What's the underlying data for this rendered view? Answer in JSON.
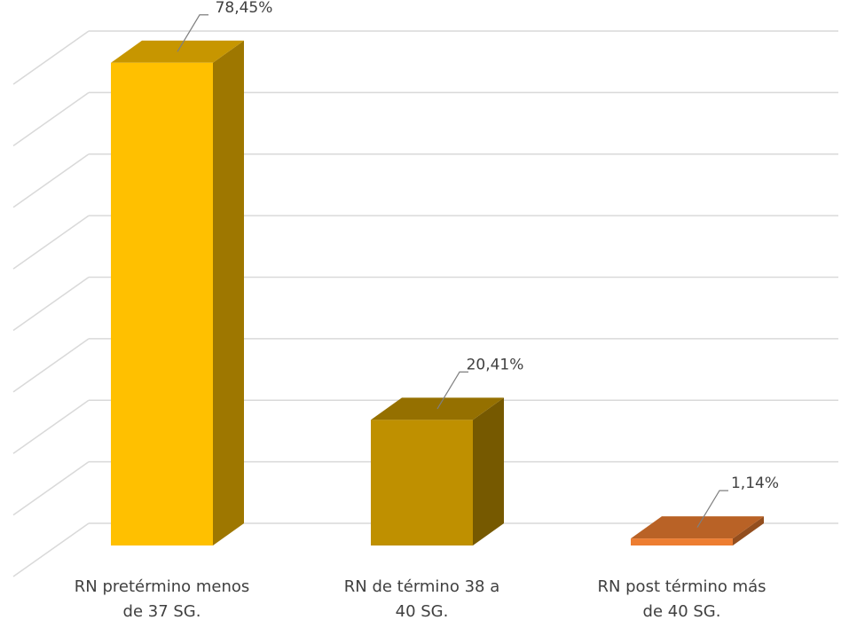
{
  "chart_data": {
    "type": "bar3d",
    "categories": [
      [
        "RN pretérmino menos",
        "de 37 SG."
      ],
      [
        "RN de término 38 a",
        "40 SG."
      ],
      [
        "RN post término más",
        "de 40 SG."
      ]
    ],
    "values": [
      78.45,
      20.41,
      1.14
    ],
    "value_labels": [
      "78,45%",
      "20,41%",
      "1,14%"
    ],
    "colors": [
      "#FFC000",
      "#BF9000",
      "#ED7D31"
    ],
    "ylim": [
      0,
      80
    ],
    "yticks": [
      0,
      10,
      20,
      30,
      40,
      50,
      60,
      70,
      80
    ],
    "grid": true
  }
}
